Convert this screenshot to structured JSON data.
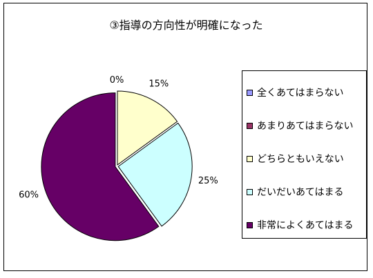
{
  "chart_data": {
    "type": "pie",
    "title": "③指導の方向性が明確になった",
    "legend_position": "right",
    "categories": [
      "全くあてはまらない",
      "あまりあてはまらない",
      "どちらともいえない",
      "だいだいあてはまる",
      "非常によくあてはまる"
    ],
    "values": [
      0,
      0,
      15,
      25,
      60
    ],
    "labels": [
      "",
      "",
      "15%",
      "25%",
      "60%"
    ],
    "zero_label": "0%",
    "colors": [
      "#9999FF",
      "#993366",
      "#FFFFCC",
      "#CCFFFF",
      "#660066"
    ]
  }
}
